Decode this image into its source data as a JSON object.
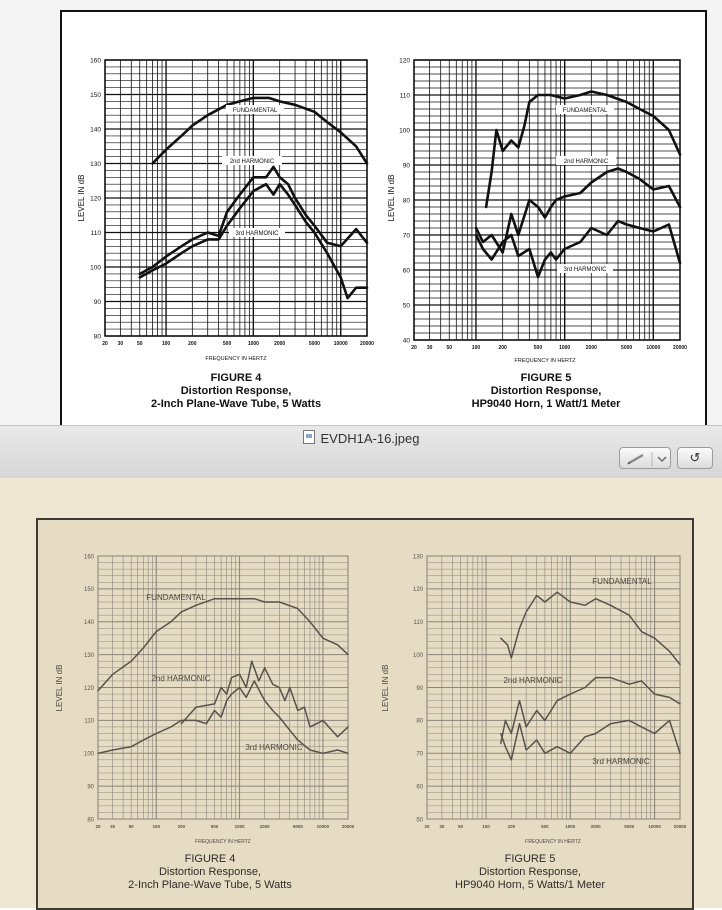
{
  "window": {
    "file_title": "EVDH1A-16.jpeg",
    "rotate_label": "↺"
  },
  "icons": {
    "file": "jpeg-file-icon",
    "edit": "pencil-icon",
    "dropdown": "chevron-down-icon",
    "rotate": "rotate-left-icon"
  },
  "colors": {
    "bar_top": "#e9e9e9",
    "bar_bottom": "#d6d6d6",
    "aged_paper": "#e6dcc4",
    "ink_dark": "#111111",
    "ink_faded": "#57534c"
  },
  "x_tick_labels_common": [
    "20",
    "30",
    "50",
    "100",
    "200",
    "500",
    "1000",
    "2000",
    "5000",
    "10000",
    "20000"
  ],
  "scan_top": {
    "fig4": {
      "title_line1": "FIGURE 4",
      "title_line2": "Distortion Response,",
      "title_line3": "2-Inch Plane-Wave Tube, 5 Watts",
      "ylabel": "LEVEL IN dB",
      "xlabel": "FREQUENCY IN HERTZ",
      "y_ticks": [
        "160",
        "150",
        "140",
        "130",
        "120",
        "110",
        "100",
        "90",
        "80"
      ],
      "label_fund": "FUNDAMENTAL",
      "label_h2": "2nd HARMONIC",
      "label_h3": "3rd HARMONIC"
    },
    "fig5": {
      "title_line1": "FIGURE 5",
      "title_line2": "Distortion Response,",
      "title_line3": "HP9040 Horn, 1 Watt/1 Meter",
      "ylabel": "LEVEL IN dB",
      "xlabel": "FREQUENCY IN HERTZ",
      "y_ticks": [
        "120",
        "110",
        "100",
        "90",
        "80",
        "70",
        "60",
        "50",
        "40"
      ],
      "label_fund": "FUNDAMENTAL",
      "label_h2": "2nd HARMONIC",
      "label_h3": "3rd HARMONIC"
    }
  },
  "scan_bottom": {
    "fig4": {
      "title_line1": "FIGURE 4",
      "title_line2": "Distortion Response,",
      "title_line3": "2-Inch Plane-Wave Tube, 5 Watts",
      "ylabel": "LEVEL IN dB",
      "xlabel": "FREQUENCY IN HERTZ",
      "y_ticks": [
        "160",
        "150",
        "140",
        "130",
        "120",
        "110",
        "100",
        "90",
        "80"
      ],
      "label_fund": "FUNDAMENTAL",
      "label_h2": "2nd HARMONIC",
      "label_h3": "3rd HARMONIC"
    },
    "fig5": {
      "title_line1": "FIGURE 5",
      "title_line2": "Distortion Response,",
      "title_line3": "HP9040 Horn, 5 Watts/1 Meter",
      "ylabel": "LEVEL IN dB",
      "xlabel": "FREQUENCY IN HERTZ",
      "y_ticks": [
        "130",
        "120",
        "110",
        "100",
        "90",
        "80",
        "70",
        "60",
        "50"
      ],
      "label_fund": "FUNDAMENTAL",
      "label_h2": "2nd HARMONIC",
      "label_h3": "3rd HARMONIC"
    }
  },
  "chart_data": [
    {
      "type": "line",
      "xscale": "log",
      "xlim": [
        20,
        20000
      ],
      "ylim": [
        80,
        160
      ],
      "series": [
        {
          "name": "FUNDAMENTAL",
          "x": [
            70,
            100,
            150,
            200,
            300,
            500,
            700,
            1000,
            1500,
            2000,
            3000,
            5000,
            7000,
            10000,
            15000,
            20000
          ],
          "y": [
            130,
            134,
            138,
            141,
            144,
            147,
            148,
            149,
            149,
            148,
            147,
            145,
            142,
            139,
            135,
            130
          ]
        },
        {
          "name": "2nd HARMONIC",
          "x": [
            50,
            70,
            100,
            150,
            200,
            300,
            400,
            500,
            700,
            1000,
            1400,
            1700,
            2000,
            2500,
            3000,
            4000,
            5000,
            7000,
            10000,
            15000,
            20000
          ],
          "y": [
            98,
            100,
            103,
            106,
            108,
            110,
            109,
            116,
            121,
            126,
            126,
            129,
            126,
            124,
            120,
            115,
            112,
            107,
            106,
            111,
            107
          ]
        },
        {
          "name": "3rd HARMONIC",
          "x": [
            50,
            70,
            100,
            150,
            200,
            300,
            400,
            500,
            700,
            1000,
            1400,
            1700,
            2000,
            2500,
            3000,
            4000,
            5000,
            7000,
            10000,
            12000,
            15000,
            20000
          ],
          "y": [
            97,
            99,
            101,
            104,
            106,
            108,
            108,
            112,
            117,
            122,
            124,
            121,
            124,
            121,
            118,
            113,
            110,
            104,
            97,
            91,
            94,
            94
          ]
        }
      ]
    },
    {
      "type": "line",
      "xscale": "log",
      "xlim": [
        20,
        20000
      ],
      "ylim": [
        40,
        120
      ],
      "series": [
        {
          "name": "FUNDAMENTAL",
          "x": [
            130,
            150,
            170,
            200,
            250,
            300,
            350,
            400,
            500,
            700,
            1000,
            1500,
            2000,
            3000,
            5000,
            7000,
            10000,
            15000,
            20000
          ],
          "y": [
            78,
            88,
            100,
            94,
            97,
            95,
            101,
            108,
            110,
            110,
            109,
            110,
            111,
            110,
            108,
            106,
            104,
            100,
            93
          ]
        },
        {
          "name": "2nd HARMONIC",
          "x": [
            100,
            120,
            150,
            200,
            250,
            300,
            400,
            500,
            600,
            700,
            800,
            1000,
            1500,
            2000,
            3000,
            4000,
            5000,
            7000,
            10000,
            15000,
            20000
          ],
          "y": [
            72,
            68,
            70,
            65,
            76,
            70,
            80,
            78,
            75,
            78,
            80,
            81,
            82,
            85,
            88,
            89,
            88,
            86,
            83,
            84,
            78
          ]
        },
        {
          "name": "3rd HARMONIC",
          "x": [
            100,
            120,
            150,
            200,
            250,
            300,
            400,
            500,
            600,
            700,
            800,
            1000,
            1500,
            2000,
            3000,
            4000,
            5000,
            7000,
            10000,
            15000,
            20000
          ],
          "y": [
            70,
            66,
            63,
            68,
            70,
            64,
            66,
            58,
            63,
            65,
            63,
            66,
            68,
            72,
            70,
            74,
            73,
            72,
            71,
            73,
            62
          ]
        }
      ]
    },
    {
      "type": "line",
      "xscale": "log",
      "xlim": [
        20,
        20000
      ],
      "ylim": [
        80,
        160
      ],
      "series": [
        {
          "name": "FUNDAMENTAL",
          "x": [
            20,
            30,
            50,
            70,
            100,
            150,
            200,
            300,
            500,
            700,
            1000,
            1500,
            2000,
            3000,
            5000,
            7000,
            10000,
            15000,
            20000
          ],
          "y": [
            119,
            124,
            128,
            132,
            137,
            140,
            143,
            145,
            147,
            147,
            147,
            147,
            146,
            146,
            144,
            140,
            135,
            133,
            130
          ]
        },
        {
          "name": "2nd HARMONIC",
          "x": [
            200,
            300,
            500,
            600,
            700,
            800,
            1000,
            1200,
            1400,
            1700,
            2000,
            2500,
            3000,
            3500,
            4000,
            5000,
            6000,
            7000,
            10000,
            15000,
            20000
          ],
          "y": [
            109,
            114,
            115,
            120,
            118,
            123,
            124,
            120,
            128,
            122,
            126,
            121,
            120,
            116,
            120,
            113,
            114,
            108,
            110,
            105,
            108
          ]
        },
        {
          "name": "3rd HARMONIC",
          "x": [
            20,
            30,
            50,
            70,
            100,
            150,
            200,
            300,
            400,
            500,
            600,
            700,
            800,
            1000,
            1200,
            1500,
            2000,
            2500,
            3000,
            4000,
            5000,
            7000,
            10000,
            15000,
            20000
          ],
          "y": [
            100,
            101,
            102,
            104,
            106,
            108,
            110,
            110,
            109,
            113,
            111,
            116,
            118,
            120,
            117,
            122,
            116,
            113,
            111,
            107,
            104,
            101,
            100,
            101,
            100
          ]
        }
      ]
    },
    {
      "type": "line",
      "xscale": "log",
      "xlim": [
        20,
        20000
      ],
      "ylim": [
        50,
        130
      ],
      "series": [
        {
          "name": "FUNDAMENTAL",
          "x": [
            150,
            180,
            200,
            250,
            300,
            400,
            500,
            700,
            1000,
            1500,
            2000,
            3000,
            5000,
            7000,
            10000,
            15000,
            20000
          ],
          "y": [
            105,
            103,
            99,
            108,
            113,
            118,
            116,
            119,
            116,
            115,
            117,
            115,
            112,
            107,
            105,
            101,
            97
          ]
        },
        {
          "name": "2nd HARMONIC",
          "x": [
            150,
            170,
            200,
            250,
            300,
            400,
            500,
            700,
            1000,
            1500,
            2000,
            3000,
            5000,
            7000,
            10000,
            15000,
            20000
          ],
          "y": [
            73,
            80,
            76,
            86,
            78,
            83,
            80,
            86,
            88,
            90,
            93,
            93,
            91,
            92,
            88,
            87,
            85
          ]
        },
        {
          "name": "3rd HARMONIC",
          "x": [
            150,
            170,
            200,
            250,
            300,
            400,
            500,
            700,
            1000,
            1500,
            2000,
            3000,
            5000,
            7000,
            10000,
            15000,
            20000
          ],
          "y": [
            76,
            72,
            68,
            79,
            71,
            74,
            70,
            72,
            70,
            75,
            76,
            79,
            80,
            78,
            76,
            80,
            70
          ]
        }
      ]
    }
  ]
}
